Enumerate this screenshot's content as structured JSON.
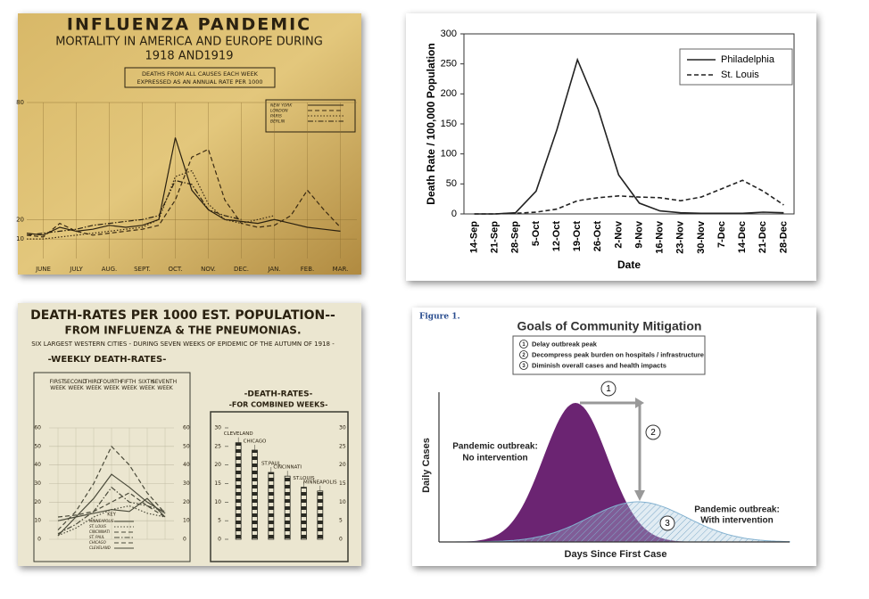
{
  "chart_data": [
    {
      "type": "line",
      "title": "INFLUENZA PANDEMIC",
      "subtitle": "MORTALITY IN AMERICA AND EUROPE DURING",
      "subtitle2": "1918 AND1919",
      "note": [
        "DEATHS FROM ALL CAUSES EACH WEEK",
        "EXPRESSED AS AN ANNUAL RATE PER 1000"
      ],
      "x": [
        0,
        0.5,
        1,
        1.5,
        2,
        2.5,
        3,
        3.5,
        4,
        4.5,
        5,
        5.5,
        6,
        6.5,
        7,
        7.5,
        8,
        8.5,
        9,
        9.5
      ],
      "xlim": [
        0,
        10
      ],
      "xticks": [
        {
          "value": 0.5,
          "label": "JUNE"
        },
        {
          "value": 1.5,
          "label": "JULY"
        },
        {
          "value": 2.5,
          "label": "AUG."
        },
        {
          "value": 3.5,
          "label": "SEPT."
        },
        {
          "value": 4.5,
          "label": "OCT."
        },
        {
          "value": 5.5,
          "label": "NOV."
        },
        {
          "value": 6.5,
          "label": "DEC."
        },
        {
          "value": 7.5,
          "label": "JAN."
        },
        {
          "value": 8.5,
          "label": "FEB."
        },
        {
          "value": 9.5,
          "label": "MAR."
        }
      ],
      "ylim": [
        0,
        80
      ],
      "yticks": [
        10,
        20,
        80
      ],
      "grid": true,
      "series": [
        {
          "name": "NEW YORK",
          "color": "#2b2110",
          "style": "solid",
          "values": [
            13,
            12,
            16,
            14,
            15,
            17,
            16,
            17,
            20,
            62,
            35,
            25,
            20,
            19,
            18,
            20,
            18,
            16,
            15,
            14
          ]
        },
        {
          "name": "LONDON",
          "color": "#3a2a12",
          "style": "dashed",
          "values": [
            12,
            11,
            18,
            14,
            12,
            13,
            14,
            15,
            17,
            30,
            52,
            56,
            30,
            18,
            16,
            17,
            22,
            35,
            25,
            16
          ]
        },
        {
          "name": "PARIS",
          "color": "#3a2a12",
          "style": "dotted",
          "values": [
            10,
            10,
            11,
            12,
            13,
            14,
            15,
            16,
            20,
            42,
            45,
            28,
            20,
            18,
            20,
            22,
            null,
            null,
            null,
            null
          ]
        },
        {
          "name": "BERLIN",
          "color": "#2b2110",
          "style": "dashdot",
          "values": [
            12,
            13,
            14,
            15,
            17,
            18,
            19,
            20,
            22,
            40,
            38,
            25,
            22,
            20,
            null,
            null,
            null,
            null,
            null,
            null
          ]
        }
      ]
    },
    {
      "type": "line",
      "xlabel": "Date",
      "ylabel": "Death Rate / 100,000 Population",
      "categories": [
        "14-Sep",
        "21-Sep",
        "28-Sep",
        "5-Oct",
        "12-Oct",
        "19-Oct",
        "26-Oct",
        "2-Nov",
        "9-Nov",
        "16-Nov",
        "23-Nov",
        "30-Nov",
        "7-Dec",
        "14-Dec",
        "21-Dec",
        "28-Dec"
      ],
      "ylim": [
        0,
        300
      ],
      "yticks": [
        0,
        50,
        100,
        150,
        200,
        250,
        300
      ],
      "grid": false,
      "legend": "upper right",
      "series": [
        {
          "name": "Philadelphia",
          "color": "#222222",
          "style": "solid",
          "values": [
            0,
            0,
            2,
            38,
            140,
            257,
            175,
            65,
            18,
            5,
            2,
            1,
            1,
            1,
            3,
            2
          ]
        },
        {
          "name": "St. Louis",
          "color": "#222222",
          "style": "dashed",
          "values": [
            0,
            0,
            1,
            3,
            8,
            22,
            27,
            30,
            28,
            27,
            22,
            28,
            42,
            56,
            38,
            15
          ]
        }
      ]
    },
    {
      "type": "line",
      "title": "DEATH-RATES PER 1000 EST. POPULATION--",
      "subtitle": "FROM INFLUENZA & THE PNEUMONIAS.",
      "note": "SIX LARGEST WESTERN CITIES - DURING SEVEN WEEKS OF EPIDEMIC OF THE AUTUMN OF 1918 -",
      "section": "-WEEKLY DEATH-RATES-",
      "legend_title": "KEY",
      "categories": [
        "FIRST WEEK",
        "SECOND WEEK",
        "THIRD WEEK",
        "FOURTH WEEK",
        "FIFTH WEEK",
        "SIXTH WEEK",
        "SEVENTH WEEK"
      ],
      "ylim": [
        0,
        60
      ],
      "yticks": [
        0,
        10,
        20,
        30,
        40,
        50,
        60
      ],
      "grid": true,
      "series": [
        {
          "name": "MINNEAPOLIS",
          "color": "#4a4a3a",
          "style": "solid",
          "values": [
            10,
            12,
            14,
            16,
            15,
            22,
            12
          ]
        },
        {
          "name": "ST. LOUIS",
          "color": "#4a4a3a",
          "style": "dotted",
          "values": [
            2,
            6,
            12,
            16,
            18,
            14,
            12
          ]
        },
        {
          "name": "CINCINNATI",
          "color": "#4a4a3a",
          "style": "dashed",
          "values": [
            12,
            13,
            15,
            20,
            25,
            18,
            12
          ]
        },
        {
          "name": "ST. PAUL",
          "color": "#4a4a3a",
          "style": "dashdot",
          "values": [
            3,
            8,
            15,
            28,
            20,
            18,
            15
          ]
        },
        {
          "name": "CHICAGO",
          "color": "#4a4a3a",
          "style": "dashed",
          "values": [
            5,
            15,
            30,
            50,
            40,
            25,
            14
          ]
        },
        {
          "name": "CLEVELAND",
          "color": "#4a4a3a",
          "style": "solid",
          "values": [
            2,
            12,
            22,
            35,
            28,
            20,
            14
          ]
        }
      ]
    },
    {
      "type": "bar",
      "title": "-DEATH-RATES-",
      "subtitle": "-FOR COMBINED WEEKS-",
      "categories": [
        "CLEVELAND",
        "CHICAGO",
        "ST.PAUL",
        "CINCINNATI",
        "ST.LOUIS",
        "MINNEAPOLIS"
      ],
      "values": [
        26,
        24,
        18,
        17,
        14,
        13
      ],
      "color": "#2a2a22",
      "ylim": [
        0,
        30
      ],
      "yticks": [
        0,
        5,
        10,
        15,
        20,
        25,
        30
      ]
    },
    {
      "type": "diagram",
      "figure_label": "Figure 1.",
      "title": "Goals of Community Mitigation",
      "goals": [
        {
          "number": "1",
          "text": "Delay outbreak peak"
        },
        {
          "number": "2",
          "text": "Decompress peak burden on hospitals / infrastructure"
        },
        {
          "number": "3",
          "text": "Diminish overall cases and health impacts"
        }
      ],
      "no_intervention": [
        "Pandemic outbreak:",
        "No intervention"
      ],
      "with_intervention": [
        "Pandemic outbreak:",
        "With intervention"
      ],
      "ylabel": "Daily Cases",
      "xlabel": "Days Since First Case",
      "colors": [
        "#6b2472",
        "#a9c9dd"
      ]
    }
  ]
}
